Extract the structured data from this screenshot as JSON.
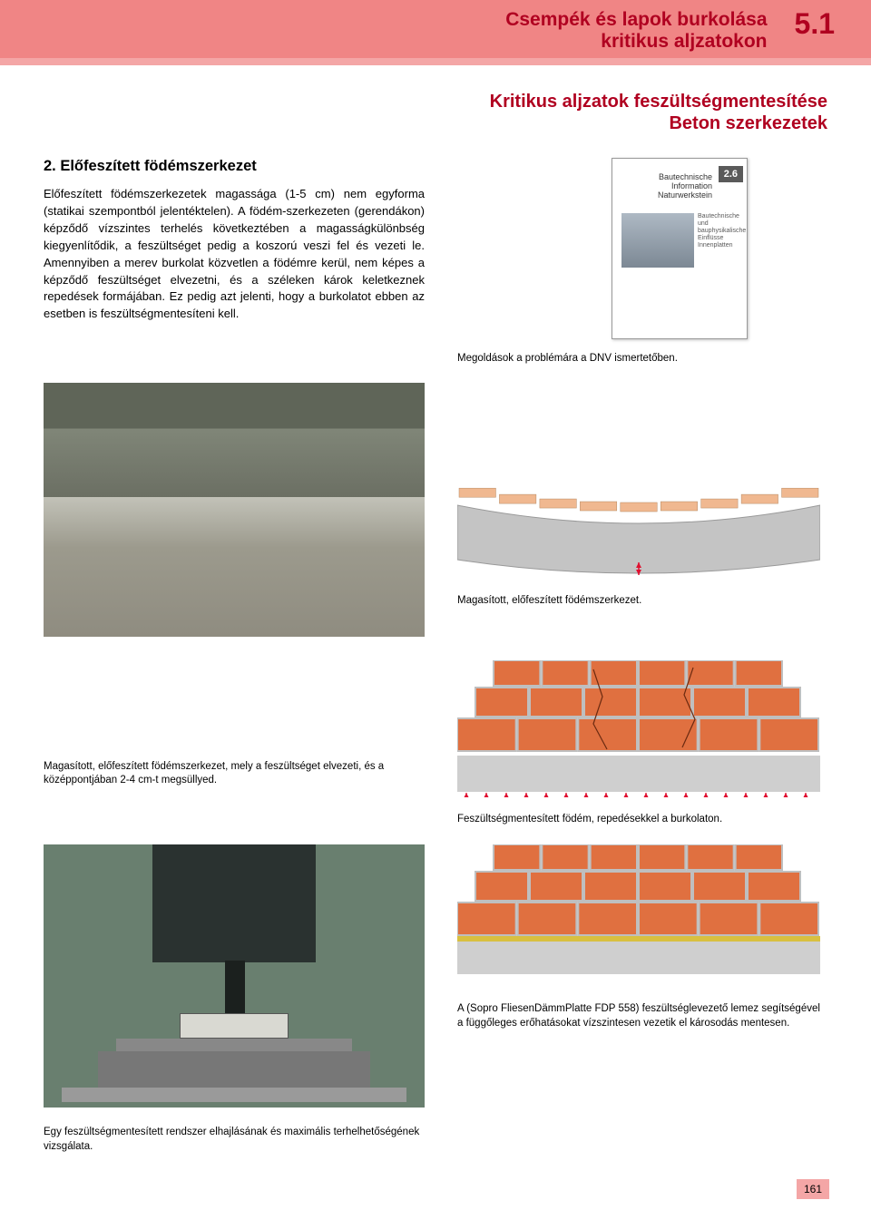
{
  "header": {
    "title_line1": "Csempék és lapok burkolása",
    "title_line2": "kritikus aljzatokon",
    "section_number": "5.1",
    "subtitle_line1": "Kritikus aljzatok feszültségmentesítése",
    "subtitle_line2": "Beton szerkezetek",
    "title_color": "#b00020",
    "band_color": "#f08585",
    "strip_color": "#f4a6a6"
  },
  "section2": {
    "heading": "2. Előfeszített födémszerkezet",
    "body": "Előfeszített födémszerkezetek magassága (1-5 cm) nem egyforma (statikai szempontból jelentéktelen). A födém-szerkezeten (gerendákon) képződő vízszintes terhelés következtében a magasságkülönbség kiegyenlítődik, a feszültséget pedig a koszorú veszi fel és vezeti le. Amennyiben a merev burkolat közvetlen a födémre kerül, nem képes a képződő feszültséget elvezetni, és a széleken károk keletkeznek repedések formájában. Ez pedig azt jelenti, hogy a burkolatot ebben az esetben is feszültségmentesíteni kell."
  },
  "booklet": {
    "tab_number": "2.6",
    "side_label1": "Bautechnische",
    "side_label2": "Information",
    "side_label3": "Naturwerkstein",
    "mini_text": "Bautechnische und bauphysikalische Einflüsse Innenplatten"
  },
  "captions": {
    "dnv": "Megoldások a problémára a  DNV  ismertetőben.",
    "deflect": "Magasított, előfeszített födémszerkezet.",
    "left_mid": "Magasított, előfeszített födémszerkezet, mely a feszültséget elvezeti, és a középpontjában 2-4 cm-t megsüllyed.",
    "cracked": "Feszültségmentesített födém, repedésekkel a burkolaton.",
    "fdp": "A (Sopro FliesenDämmPlatte FDP 558) feszültséglevezető lemez segítségével a függőleges erőhatásokat vízszintesen vezetik el károsodás mentesen.",
    "press": "Egy feszültségmentesített rendszer elhajlásának és maximális terhelhetőségének vizsgálata."
  },
  "page_number": "161",
  "diagrams": {
    "deflect": {
      "bg": "#ffffff",
      "tile_color": "#f0b890",
      "slab_color": "#c4c4c4",
      "line_color": "#888888",
      "arrow_color": "#e01030",
      "tile_count": 9
    },
    "cracked_tiles": {
      "bg": "#ffffff",
      "tile_color": "#e07040",
      "grout_color": "#bfbfbf",
      "slab_top_color": "#cfcfcf",
      "slab_bottom_color": "#aeaeae",
      "arrow_color": "#e01030",
      "rows": 3,
      "cols": 6
    },
    "decoupled_tiles": {
      "bg": "#ffffff",
      "tile_color": "#e07040",
      "grout_color": "#bfbfbf",
      "membrane_color": "#d8c040",
      "slab_color": "#cfcfcf",
      "rows": 3,
      "cols": 6
    }
  }
}
